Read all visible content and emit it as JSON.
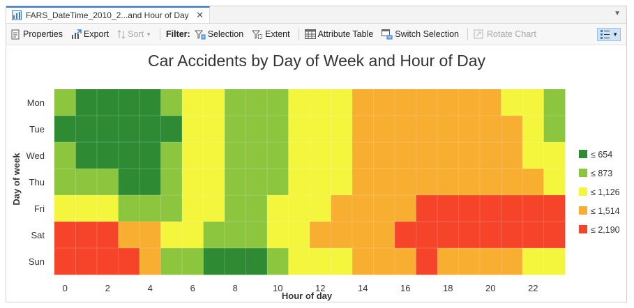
{
  "tab": {
    "title": "FARS_DateTime_2010_2...and Hour of Day",
    "close": "✕"
  },
  "toolbar": {
    "properties": "Properties",
    "export": "Export",
    "sort": "Sort",
    "filter_label": "Filter:",
    "selection": "Selection",
    "extent": "Extent",
    "attribute_table": "Attribute Table",
    "switch_selection": "Switch Selection",
    "rotate_chart": "Rotate Chart"
  },
  "colors": {
    "bin1": "#2e8b34",
    "bin2": "#8cc63e",
    "bin3": "#f3f63c",
    "bin4": "#f8ae30",
    "bin5": "#f5442a"
  },
  "chart_data": {
    "type": "heatmap",
    "title": "Car Accidents by Day of Week and Hour of Day",
    "xlabel": "Hour of day",
    "ylabel": "Day of week",
    "x_ticks": [
      "0",
      "2",
      "4",
      "6",
      "8",
      "10",
      "12",
      "14",
      "16",
      "18",
      "20",
      "22"
    ],
    "hours": [
      0,
      1,
      2,
      3,
      4,
      5,
      6,
      7,
      8,
      9,
      10,
      11,
      12,
      13,
      14,
      15,
      16,
      17,
      18,
      19,
      20,
      21,
      22,
      23
    ],
    "days": [
      "Mon",
      "Tue",
      "Wed",
      "Thu",
      "Fri",
      "Sat",
      "Sun"
    ],
    "legend": [
      "≤ 654",
      "≤ 873",
      "≤ 1,126",
      "≤ 1,514",
      "≤ 2,190"
    ],
    "bins": [
      [
        2,
        1,
        1,
        1,
        1,
        2,
        3,
        3,
        2,
        2,
        2,
        3,
        3,
        3,
        4,
        4,
        4,
        4,
        4,
        4,
        4,
        3,
        3,
        2
      ],
      [
        1,
        1,
        1,
        1,
        1,
        1,
        3,
        3,
        2,
        2,
        2,
        3,
        3,
        3,
        4,
        4,
        4,
        4,
        4,
        4,
        4,
        4,
        3,
        2
      ],
      [
        2,
        1,
        1,
        1,
        1,
        2,
        3,
        3,
        2,
        2,
        2,
        3,
        3,
        3,
        4,
        4,
        4,
        4,
        4,
        4,
        4,
        4,
        3,
        3
      ],
      [
        2,
        2,
        2,
        1,
        1,
        2,
        3,
        3,
        2,
        2,
        2,
        3,
        3,
        3,
        4,
        4,
        4,
        4,
        4,
        4,
        4,
        4,
        4,
        3
      ],
      [
        3,
        3,
        3,
        2,
        2,
        2,
        3,
        3,
        2,
        2,
        3,
        3,
        3,
        4,
        4,
        4,
        4,
        5,
        5,
        5,
        5,
        5,
        5,
        5
      ],
      [
        5,
        5,
        5,
        4,
        4,
        3,
        3,
        2,
        2,
        2,
        3,
        3,
        4,
        4,
        4,
        4,
        5,
        5,
        5,
        5,
        5,
        5,
        5,
        5
      ],
      [
        5,
        5,
        5,
        5,
        4,
        2,
        2,
        1,
        1,
        1,
        2,
        3,
        3,
        3,
        4,
        4,
        4,
        5,
        4,
        4,
        4,
        4,
        3,
        3
      ]
    ]
  }
}
